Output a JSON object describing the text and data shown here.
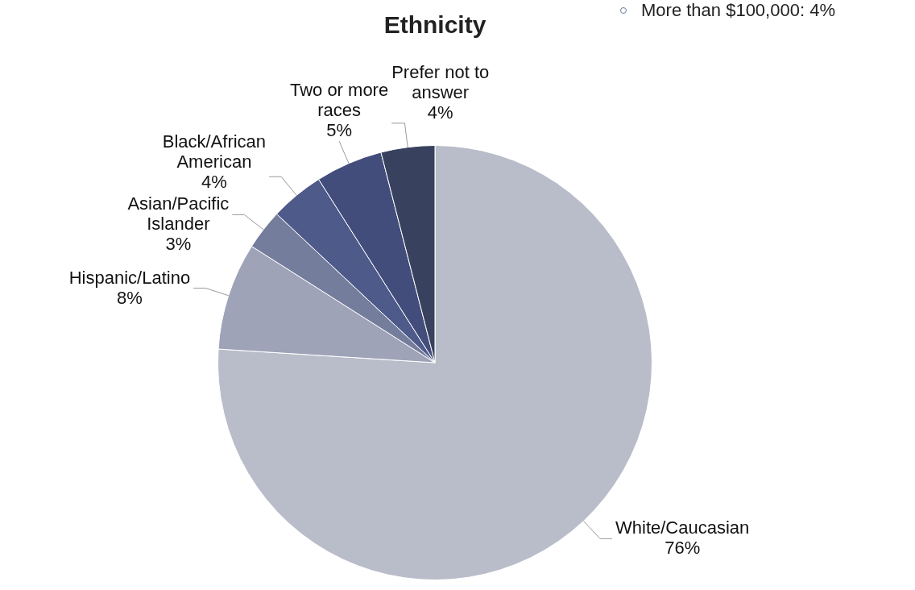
{
  "chart_data": {
    "type": "pie",
    "title": "Ethnicity",
    "categories": [
      "White/Caucasian",
      "Hispanic/Latino",
      "Asian/Pacific Islander",
      "Black/African American",
      "Two or more races",
      "Prefer not to answer"
    ],
    "values": [
      76,
      8,
      3,
      4,
      5,
      4
    ],
    "value_labels": [
      "76%",
      "8%",
      "3%",
      "4%",
      "5%",
      "4%"
    ],
    "colors": [
      "#b9bcc9",
      "#9ea3b8",
      "#757d9c",
      "#4e5a8a",
      "#434d7c",
      "#38425f"
    ],
    "legend": false,
    "annotations": [
      "More than $100,000: 4%"
    ]
  }
}
